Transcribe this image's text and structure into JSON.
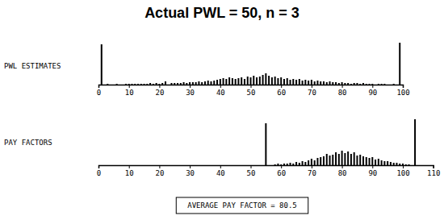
{
  "chart_data": [
    {
      "type": "bar",
      "title": "Actual PWL = 50, n = 3",
      "ylabel": "PWL ESTIMATES",
      "color": "#000000",
      "tick_labels": "x",
      "x": [
        1,
        2,
        3,
        4,
        5,
        6,
        7,
        8,
        9,
        10,
        11,
        12,
        13,
        14,
        15,
        16,
        17,
        18,
        19,
        20,
        21,
        22,
        23,
        24,
        25,
        26,
        27,
        28,
        29,
        30,
        31,
        32,
        33,
        34,
        35,
        36,
        37,
        38,
        39,
        40,
        41,
        42,
        43,
        44,
        45,
        46,
        47,
        48,
        49,
        50,
        51,
        52,
        53,
        54,
        55,
        56,
        57,
        58,
        59,
        60,
        61,
        62,
        63,
        64,
        65,
        66,
        67,
        68,
        69,
        70,
        71,
        72,
        73,
        74,
        75,
        76,
        77,
        78,
        79,
        80,
        81,
        82,
        83,
        84,
        85,
        86,
        87,
        88,
        89,
        90,
        91,
        92,
        93,
        94,
        95,
        96,
        97,
        98,
        99
      ],
      "values": [
        50,
        0,
        1,
        0,
        0,
        1,
        0,
        0,
        1,
        1,
        1,
        1,
        1,
        1,
        1,
        1,
        2,
        1,
        2,
        1,
        2,
        4,
        0,
        2,
        2,
        2,
        2,
        3,
        2,
        3,
        3,
        3,
        4,
        3,
        4,
        5,
        4,
        5,
        6,
        7,
        8,
        7,
        9,
        8,
        7,
        8,
        9,
        7,
        10,
        9,
        11,
        9,
        10,
        12,
        14,
        11,
        9,
        10,
        8,
        9,
        7,
        8,
        6,
        7,
        6,
        7,
        5,
        6,
        5,
        6,
        4,
        5,
        4,
        4,
        3,
        4,
        3,
        3,
        2,
        3,
        2,
        2,
        1,
        2,
        2,
        1,
        2,
        1,
        1,
        1,
        0,
        1,
        1,
        1,
        0,
        0,
        1,
        0,
        52
      ],
      "xlim": [
        0,
        100
      ],
      "xticks": [
        0,
        10,
        20,
        30,
        40,
        50,
        60,
        70,
        80,
        90,
        100
      ],
      "ylim": [
        0,
        52
      ]
    },
    {
      "type": "bar",
      "ylabel": "PAY FACTORS",
      "annotation": "AVERAGE PAY FACTOR = 80.5",
      "color": "#000000",
      "tick_labels": "x",
      "x": [
        55,
        56,
        57,
        58,
        59,
        60,
        61,
        62,
        63,
        64,
        65,
        66,
        67,
        68,
        69,
        70,
        71,
        72,
        73,
        74,
        75,
        76,
        77,
        78,
        79,
        80,
        81,
        82,
        83,
        84,
        85,
        86,
        87,
        88,
        89,
        90,
        91,
        92,
        93,
        94,
        95,
        96,
        97,
        98,
        99,
        100,
        101,
        102,
        103,
        104
      ],
      "values": [
        52,
        0,
        0,
        1,
        2,
        1,
        2,
        2,
        3,
        2,
        4,
        3,
        5,
        4,
        6,
        8,
        6,
        9,
        10,
        11,
        14,
        12,
        13,
        16,
        14,
        18,
        15,
        17,
        14,
        16,
        12,
        13,
        11,
        10,
        9,
        10,
        7,
        8,
        6,
        5,
        5,
        4,
        3,
        3,
        2,
        2,
        1,
        1,
        0,
        57
      ],
      "xlim": [
        0,
        110
      ],
      "xticks": [
        0,
        10,
        20,
        30,
        40,
        50,
        60,
        70,
        80,
        90,
        100,
        110
      ],
      "ylim": [
        0,
        57
      ]
    }
  ]
}
